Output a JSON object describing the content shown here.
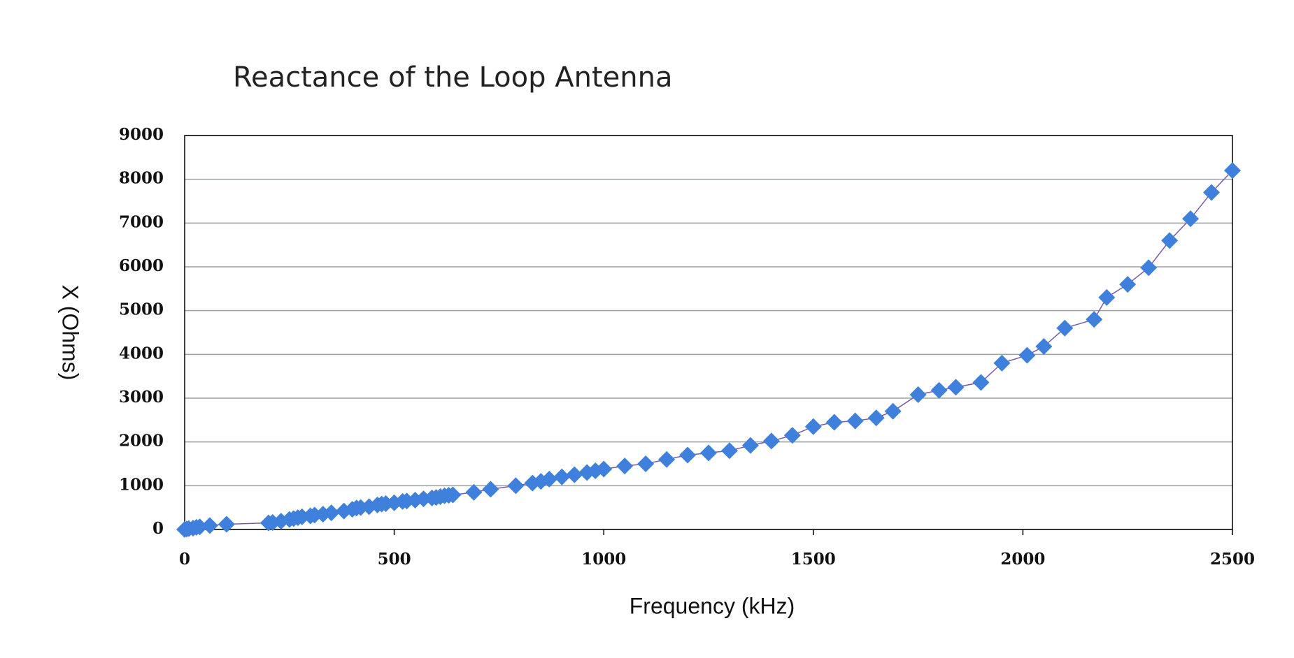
{
  "chart_data": {
    "type": "scatter",
    "title": "Reactance of the Loop Antenna",
    "x_label": "Frequency (kHz)",
    "y_label": "X (Ohms)",
    "x": [
      0,
      5,
      10,
      20,
      28,
      36,
      60,
      100,
      200,
      210,
      230,
      250,
      260,
      270,
      280,
      300,
      310,
      330,
      350,
      380,
      400,
      410,
      420,
      440,
      460,
      470,
      480,
      500,
      520,
      530,
      550,
      570,
      590,
      600,
      610,
      620,
      630,
      640,
      690,
      730,
      790,
      830,
      850,
      870,
      900,
      930,
      960,
      980,
      1000,
      1050,
      1100,
      1150,
      1200,
      1250,
      1300,
      1350,
      1400,
      1450,
      1500,
      1550,
      1600,
      1650,
      1690,
      1750,
      1800,
      1840,
      1900,
      1950,
      2010,
      2050,
      2100,
      2170,
      2200,
      2250,
      2300,
      2350,
      2400,
      2450,
      2500
    ],
    "values": [
      0,
      10,
      20,
      30,
      50,
      60,
      90,
      120,
      150,
      160,
      190,
      230,
      250,
      270,
      290,
      310,
      330,
      350,
      380,
      420,
      460,
      490,
      500,
      520,
      560,
      580,
      590,
      610,
      640,
      650,
      670,
      700,
      720,
      730,
      750,
      770,
      780,
      790,
      850,
      920,
      1000,
      1060,
      1100,
      1150,
      1200,
      1250,
      1300,
      1340,
      1380,
      1450,
      1500,
      1600,
      1700,
      1750,
      1800,
      1920,
      2020,
      2150,
      2350,
      2450,
      2480,
      2550,
      2700,
      3080,
      3180,
      3250,
      3360,
      3800,
      3980,
      4180,
      4600,
      4800,
      5300,
      5600,
      5980,
      6600,
      7100,
      7700,
      8200
    ],
    "color": "#3f80dc",
    "line_color": "#7a5aa8",
    "xlim": [
      0,
      2500
    ],
    "xticks": [
      0,
      500,
      1000,
      1500,
      2000,
      2500
    ],
    "ylim": [
      0,
      9000
    ],
    "yticks": [
      0,
      1000,
      2000,
      3000,
      4000,
      5000,
      6000,
      7000,
      8000,
      9000
    ],
    "grid": true
  }
}
